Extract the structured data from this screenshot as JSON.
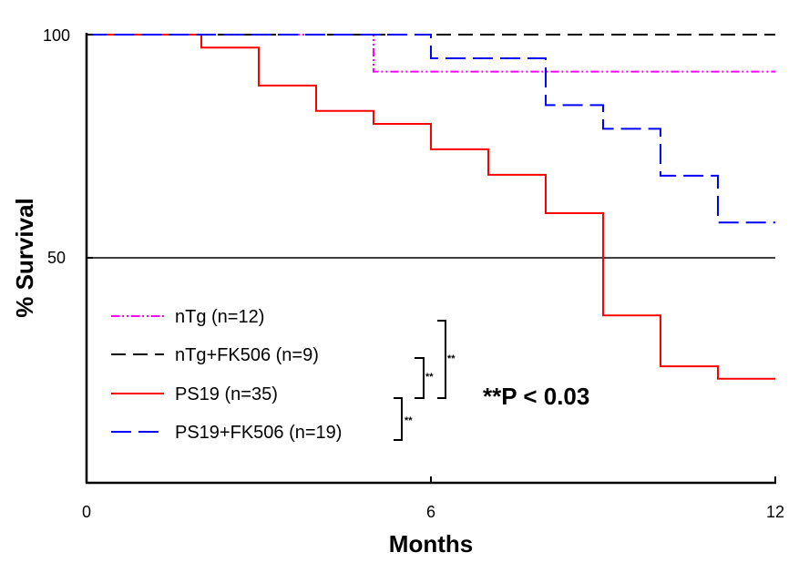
{
  "chart_data": {
    "type": "line",
    "step": true,
    "xlabel": "Months",
    "ylabel": "% Survival",
    "xlim": [
      0,
      12
    ],
    "ylim": [
      0,
      100
    ],
    "xticks": [
      "0",
      "6",
      "12"
    ],
    "yticks": [
      "50",
      "100"
    ],
    "reference_lines": [
      {
        "y": 50,
        "color": "#000000"
      }
    ],
    "series": [
      {
        "name": "nTg (n=12)",
        "color": "#ff00ff",
        "dash": "dashdotdot",
        "points": [
          [
            0,
            100
          ],
          [
            5,
            100
          ],
          [
            5,
            91.7
          ],
          [
            12,
            91.7
          ]
        ]
      },
      {
        "name": "nTg+FK506 (n=9)",
        "color": "#000000",
        "dash": "dash",
        "points": [
          [
            0,
            100
          ],
          [
            12,
            100
          ]
        ]
      },
      {
        "name": "PS19 (n=35)",
        "color": "#ff0000",
        "dash": "solid",
        "points": [
          [
            0,
            100
          ],
          [
            2,
            100
          ],
          [
            2,
            97.1
          ],
          [
            3,
            97.1
          ],
          [
            3,
            88.6
          ],
          [
            4,
            88.6
          ],
          [
            4,
            82.9
          ],
          [
            5,
            82.9
          ],
          [
            5,
            80
          ],
          [
            6,
            80
          ],
          [
            6,
            74.3
          ],
          [
            7,
            74.3
          ],
          [
            7,
            68.6
          ],
          [
            8,
            68.6
          ],
          [
            8,
            60
          ],
          [
            9,
            60
          ],
          [
            9,
            37.1
          ],
          [
            10,
            37.1
          ],
          [
            10,
            25.7
          ],
          [
            11,
            25.7
          ],
          [
            11,
            22.9
          ],
          [
            12,
            22.9
          ]
        ]
      },
      {
        "name": "PS19+FK506 (n=19)",
        "color": "#0000ff",
        "dash": "longdash",
        "points": [
          [
            0,
            100
          ],
          [
            6,
            100
          ],
          [
            6,
            94.7
          ],
          [
            8,
            94.7
          ],
          [
            8,
            84.2
          ],
          [
            9,
            84.2
          ],
          [
            9,
            78.9
          ],
          [
            10,
            78.9
          ],
          [
            10,
            68.4
          ],
          [
            11,
            68.4
          ],
          [
            11,
            57.9
          ],
          [
            12,
            57.9
          ]
        ]
      }
    ],
    "significance": {
      "marker": "**",
      "annotation": "**P < 0.03"
    }
  }
}
